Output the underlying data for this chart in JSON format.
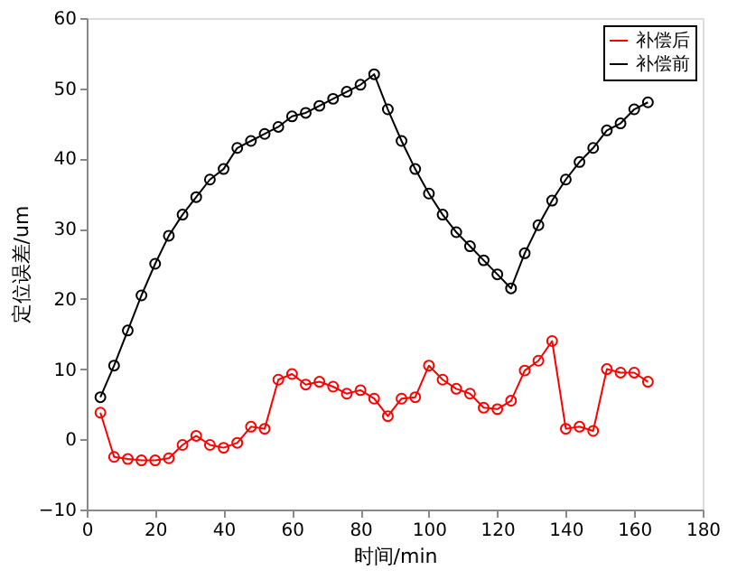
{
  "chart_data": {
    "type": "line",
    "xlabel": "时间/min",
    "ylabel": "定位误差/um",
    "x": [
      4,
      8,
      12,
      16,
      20,
      24,
      28,
      32,
      36,
      40,
      44,
      48,
      52,
      56,
      60,
      64,
      68,
      72,
      76,
      80,
      84,
      88,
      92,
      96,
      100,
      104,
      108,
      112,
      116,
      120,
      124,
      128,
      132,
      136,
      140,
      144,
      148,
      152,
      156,
      160,
      164
    ],
    "series": [
      {
        "name": "补偿后",
        "color": "#ff0000",
        "values": [
          3.8,
          -2.5,
          -2.8,
          -3,
          -3,
          -2.7,
          -0.8,
          0.5,
          -0.8,
          -1.2,
          -0.5,
          1.8,
          1.5,
          8.5,
          9.3,
          7.8,
          8.2,
          7.5,
          6.5,
          7,
          5.8,
          3.3,
          5.8,
          6,
          10.5,
          8.5,
          7.2,
          6.5,
          4.5,
          4.3,
          5.5,
          9.8,
          11.2,
          14,
          1.5,
          1.8,
          1.2,
          10,
          9.5,
          9.5,
          8.2
        ]
      },
      {
        "name": "补偿前",
        "color": "#000000",
        "values": [
          6,
          10.5,
          15.5,
          20.5,
          25,
          29,
          32,
          34.5,
          37,
          38.5,
          41.5,
          42.5,
          43.5,
          44.5,
          46,
          46.5,
          47.5,
          48.5,
          49.5,
          50.5,
          52,
          47,
          42.5,
          38.5,
          35,
          32,
          29.5,
          27.5,
          25.5,
          23.5,
          21.5,
          26.5,
          30.5,
          34,
          37,
          39.5,
          41.5,
          44,
          45,
          47,
          48
        ]
      }
    ],
    "xlim": [
      0,
      180
    ],
    "xticks": [
      0,
      20,
      40,
      60,
      80,
      100,
      120,
      140,
      160,
      180
    ],
    "ylim": [
      -10,
      60
    ],
    "yticks": [
      -10,
      0,
      10,
      20,
      30,
      40,
      50,
      60
    ],
    "marker": "circle",
    "line_style": "solid",
    "grid": false,
    "legend": "top right"
  }
}
